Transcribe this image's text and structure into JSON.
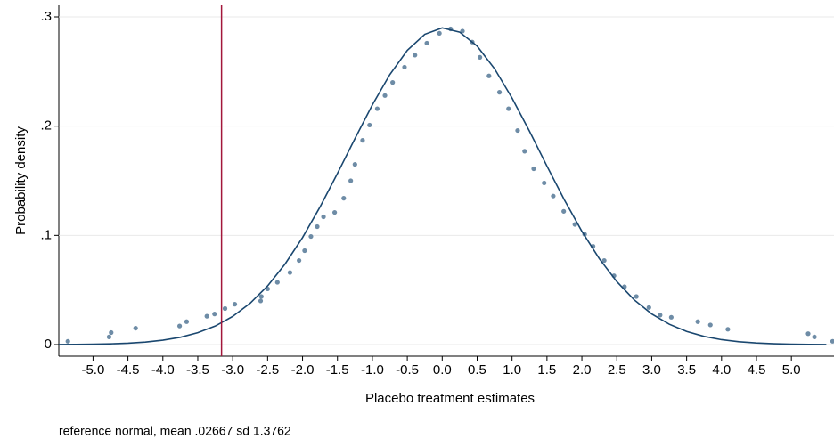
{
  "chart_data": {
    "type": "scatter",
    "xlabel": "Placebo treatment estimates",
    "ylabel": "Probability density",
    "note": "reference normal, mean .02667 sd 1.3762",
    "xlim": [
      -5.49,
      5.61
    ],
    "ylim": [
      -0.0106,
      0.3106
    ],
    "xticks": [
      {
        "value": -5,
        "label": "-5.0"
      },
      {
        "value": -4.5,
        "label": "-4.5"
      },
      {
        "value": -4,
        "label": "-4.0"
      },
      {
        "value": -3.5,
        "label": "-3.5"
      },
      {
        "value": -3,
        "label": "-3.0"
      },
      {
        "value": -2.5,
        "label": "-2.5"
      },
      {
        "value": -2,
        "label": "-2.0"
      },
      {
        "value": -1.5,
        "label": "-1.5"
      },
      {
        "value": -1,
        "label": "-1.0"
      },
      {
        "value": -0.5,
        "label": "-0.5"
      },
      {
        "value": 0,
        "label": "0.0"
      },
      {
        "value": 0.5,
        "label": "0.5"
      },
      {
        "value": 1,
        "label": "1.0"
      },
      {
        "value": 1.5,
        "label": "1.5"
      },
      {
        "value": 2,
        "label": "2.0"
      },
      {
        "value": 2.5,
        "label": "2.5"
      },
      {
        "value": 3,
        "label": "3.0"
      },
      {
        "value": 3.5,
        "label": "3.5"
      },
      {
        "value": 4,
        "label": "4.0"
      },
      {
        "value": 4.5,
        "label": "4.5"
      },
      {
        "value": 5,
        "label": "5.0"
      }
    ],
    "yticks": [
      0,
      {
        "value": 0.1,
        "label": ".1"
      },
      {
        "value": 0.2,
        "label": ".2"
      },
      {
        "value": 0.3,
        "label": ".3"
      }
    ],
    "grid": true,
    "xline": -3.16,
    "xline_color": "#a3163a",
    "points": {
      "color": "#6e8ca6",
      "x": [
        -5.36,
        -4.77,
        -4.74,
        -4.39,
        -3.76,
        -3.66,
        -3.37,
        -3.26,
        -3.11,
        -2.97,
        -2.6,
        -2.59,
        -2.5,
        -2.36,
        -2.18,
        -2.05,
        -1.97,
        -1.88,
        -1.79,
        -1.7,
        -1.54,
        -1.41,
        -1.31,
        -1.25,
        -1.14,
        -1.04,
        -0.93,
        -0.82,
        -0.71,
        -0.54,
        -0.39,
        -0.22,
        -0.04,
        0.12,
        0.29,
        0.43,
        0.54,
        0.67,
        0.82,
        0.95,
        1.08,
        1.18,
        1.31,
        1.46,
        1.59,
        1.74,
        1.9,
        2.04,
        2.16,
        2.32,
        2.46,
        2.61,
        2.78,
        2.96,
        3.12,
        3.28,
        3.66,
        3.84,
        4.09,
        5.24,
        5.33,
        5.59
      ],
      "values": [
        0.003,
        0.007,
        0.011,
        0.015,
        0.017,
        0.021,
        0.026,
        0.028,
        0.033,
        0.037,
        0.04,
        0.044,
        0.051,
        0.057,
        0.066,
        0.077,
        0.086,
        0.099,
        0.108,
        0.117,
        0.121,
        0.134,
        0.15,
        0.165,
        0.187,
        0.201,
        0.216,
        0.228,
        0.24,
        0.254,
        0.265,
        0.276,
        0.285,
        0.289,
        0.287,
        0.277,
        0.263,
        0.246,
        0.231,
        0.216,
        0.196,
        0.177,
        0.161,
        0.148,
        0.136,
        0.122,
        0.11,
        0.101,
        0.09,
        0.077,
        0.063,
        0.053,
        0.044,
        0.034,
        0.027,
        0.025,
        0.021,
        0.018,
        0.014,
        0.01,
        0.007,
        0.003
      ]
    },
    "curve": {
      "color": "#1a476f",
      "x": [
        -5.5,
        -5.25,
        -5,
        -4.75,
        -4.5,
        -4.25,
        -4,
        -3.75,
        -3.5,
        -3.25,
        -3,
        -2.75,
        -2.5,
        -2.25,
        -2,
        -1.75,
        -1.5,
        -1.25,
        -1,
        -0.75,
        -0.5,
        -0.25,
        0,
        0.25,
        0.5,
        0.75,
        1,
        1.25,
        1.5,
        1.75,
        2,
        2.25,
        2.5,
        2.75,
        3,
        3.25,
        3.5,
        3.75,
        4,
        4.25,
        4.5,
        4.75,
        5,
        5.25,
        5.5
      ],
      "values": [
        0.0001,
        0.0002,
        0.0004,
        0.0007,
        0.0013,
        0.0023,
        0.004,
        0.0067,
        0.0109,
        0.017,
        0.0258,
        0.0379,
        0.0537,
        0.0738,
        0.098,
        0.126,
        0.1567,
        0.1885,
        0.2195,
        0.2472,
        0.2694,
        0.2841,
        0.2899,
        0.2861,
        0.2733,
        0.2525,
        0.2257,
        0.1953,
        0.1634,
        0.1324,
        0.1037,
        0.0786,
        0.0577,
        0.0409,
        0.0281,
        0.0187,
        0.012,
        0.0075,
        0.0045,
        0.0026,
        0.0015,
        0.0008,
        0.0004,
        0.0002,
        0.0001
      ]
    }
  }
}
